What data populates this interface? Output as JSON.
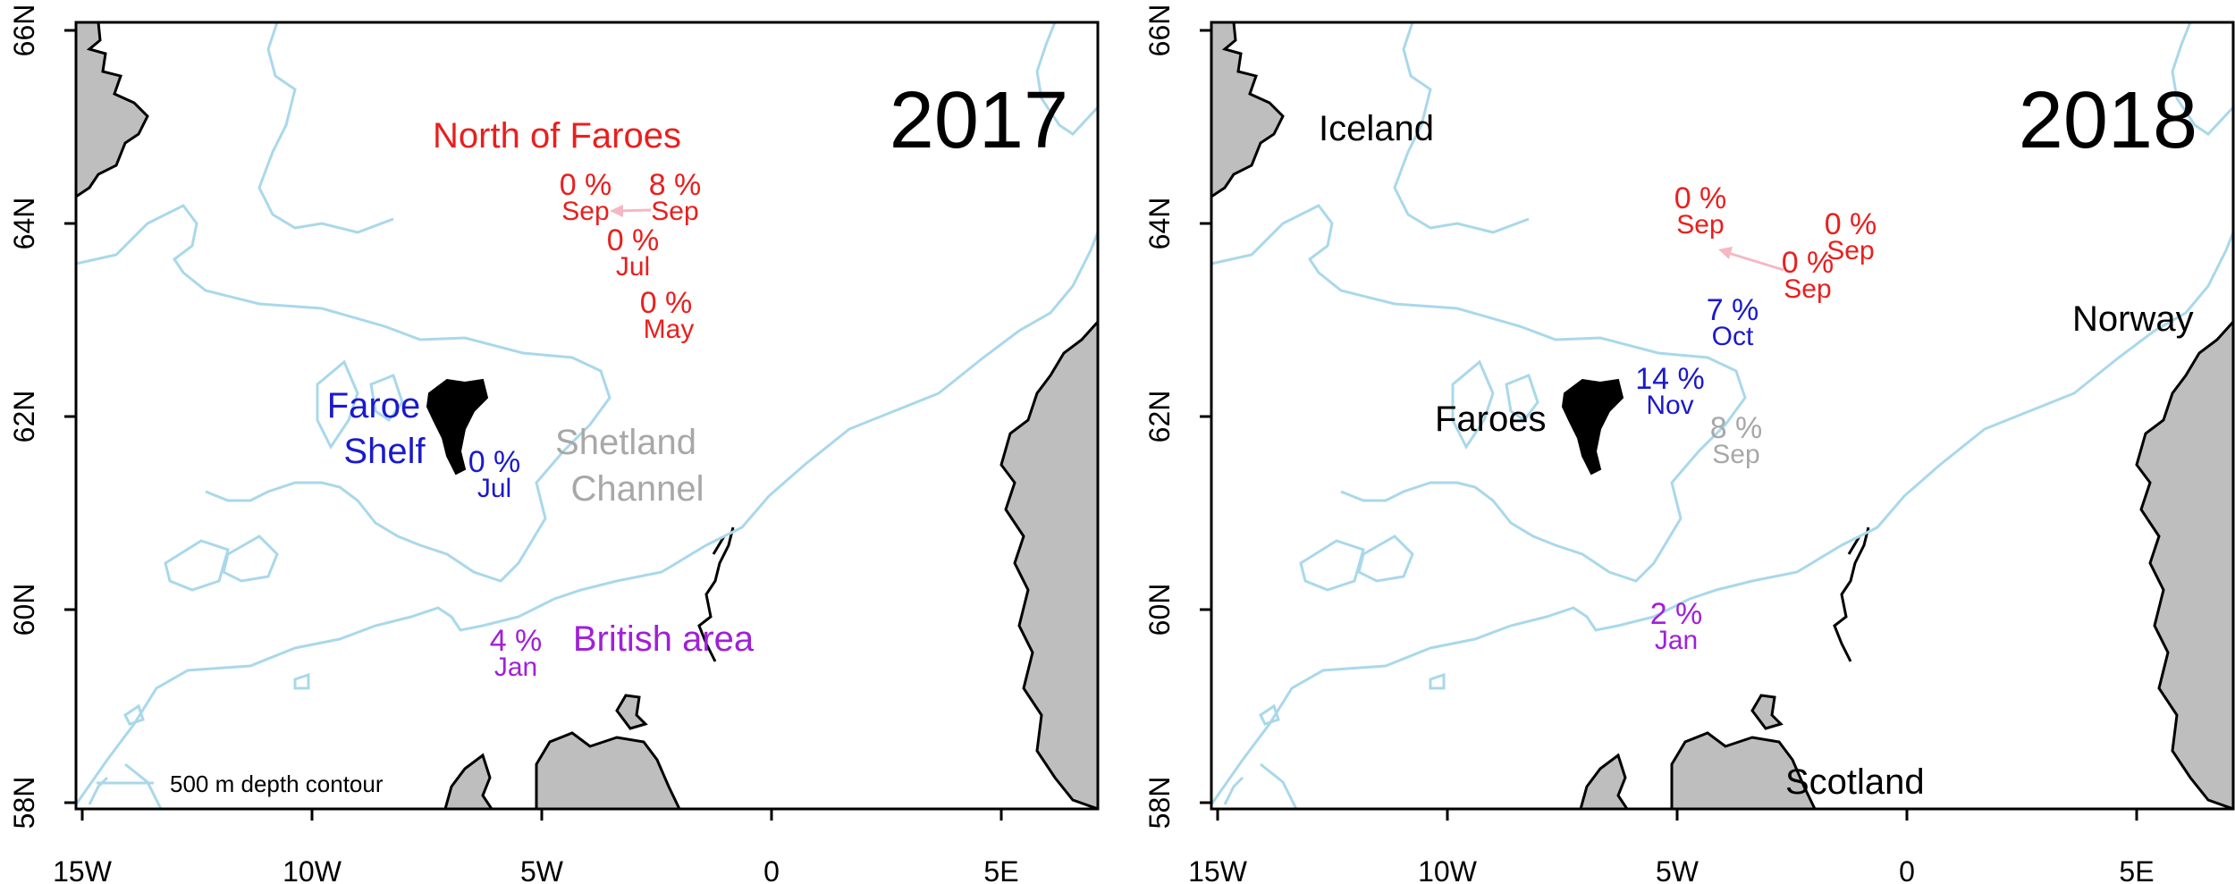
{
  "colors": {
    "red": "#e8201e",
    "blue": "#1a1acc",
    "purple": "#a020d8",
    "grey": "#a8a8a8",
    "contour": "#a9d8ea",
    "land": "#bebebe",
    "arrow": "#f4b8c4"
  },
  "x_ticks": [
    "15W",
    "10W",
    "5W",
    "0",
    "5E"
  ],
  "y_ticks": [
    "58N",
    "60N",
    "62N",
    "64N",
    "66N"
  ],
  "legend_label": "500 m depth contour",
  "panels": [
    {
      "year": "2017",
      "regions": [
        {
          "text": "North of Faroes",
          "color": "red"
        },
        {
          "text": "Faroe",
          "color": "blue"
        },
        {
          "text": "Shelf",
          "color": "blue"
        },
        {
          "text": "Shetland",
          "color": "grey"
        },
        {
          "text": "Channel",
          "color": "grey"
        },
        {
          "text": "British area",
          "color": "purple"
        }
      ],
      "samples": [
        {
          "pct": "0 %",
          "month": "Sep",
          "color": "red"
        },
        {
          "pct": "8 %",
          "month": "Sep",
          "color": "red"
        },
        {
          "pct": "0 %",
          "month": "Jul",
          "color": "red"
        },
        {
          "pct": "0 %",
          "month": "May",
          "color": "red"
        },
        {
          "pct": "0 %",
          "month": "Jul",
          "color": "blue"
        },
        {
          "pct": "4 %",
          "month": "Jan",
          "color": "purple"
        }
      ]
    },
    {
      "year": "2018",
      "places": [
        "Iceland",
        "Faroes",
        "Norway",
        "Scotland"
      ],
      "samples": [
        {
          "pct": "0 %",
          "month": "Sep",
          "color": "red"
        },
        {
          "pct": "0 %",
          "month": "Sep",
          "color": "red"
        },
        {
          "pct": "0 %",
          "month": "Sep",
          "color": "red"
        },
        {
          "pct": "7 %",
          "month": "Oct",
          "color": "blue"
        },
        {
          "pct": "14 %",
          "month": "Nov",
          "color": "blue"
        },
        {
          "pct": "8 %",
          "month": "Sep",
          "color": "grey"
        },
        {
          "pct": "2 %",
          "month": "Jan",
          "color": "purple"
        }
      ]
    }
  ]
}
